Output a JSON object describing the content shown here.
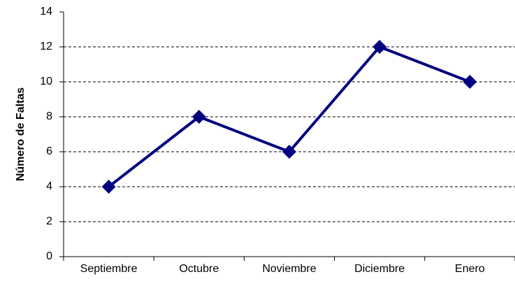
{
  "chart_data": {
    "type": "line",
    "y_label": "Número de Faltas",
    "categories": [
      "Septiembre",
      "Octubre",
      "Noviembre",
      "Diciembre",
      "Enero"
    ],
    "values": [
      4,
      8,
      6,
      12,
      10
    ],
    "color": "#000080",
    "ylim": [
      0,
      14
    ],
    "yticks": [
      0,
      2,
      4,
      6,
      8,
      10,
      12,
      14
    ],
    "grid": true
  }
}
